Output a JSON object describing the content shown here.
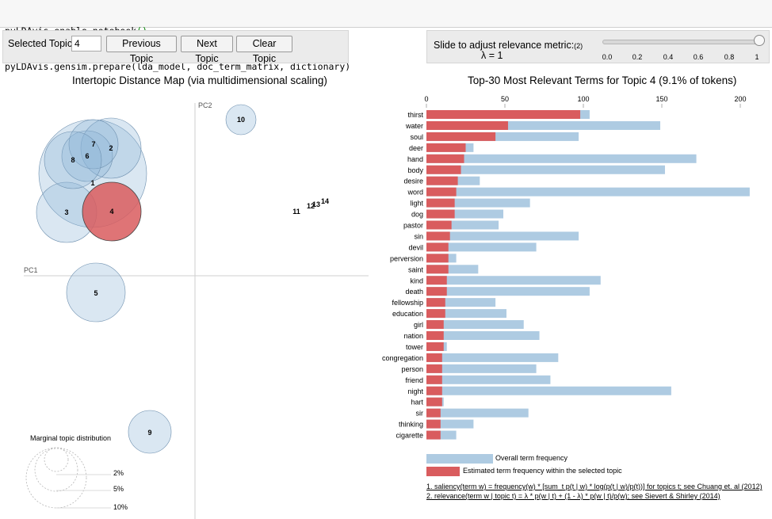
{
  "code_lines": [
    {
      "pre": "pyLDAvis.enable_notebook",
      "paren": "()"
    },
    {
      "pre": "pyLDAvis.gensim.prepare(lda_model, doc_term_matrix, dictionary)",
      "paren": ""
    }
  ],
  "controls": {
    "selected_topic_label": "Selected Topic:",
    "selected_topic_value": "4",
    "prev_label": "Previous Topic",
    "next_label": "Next Topic",
    "clear_label": "Clear Topic",
    "slider_label": "Slide to adjust relevance metric:",
    "slider_note": "(2)",
    "lambda_text": "λ = 1",
    "lambda_value": 1,
    "slider_ticks": [
      "0.0",
      "0.2",
      "0.4",
      "0.6",
      "0.8",
      "1"
    ]
  },
  "intertopic": {
    "title": "Intertopic Distance Map (via multidimensional scaling)",
    "pc1_label": "PC1",
    "pc2_label": "PC2",
    "selected_topic": "4",
    "topics": [
      "1",
      "2",
      "3",
      "4",
      "5",
      "6",
      "7",
      "8",
      "9",
      "10",
      "11",
      "12",
      "13",
      "14"
    ],
    "marginal_title": "Marginal topic distribution",
    "marginal_levels": [
      "2%",
      "5%",
      "10%"
    ]
  },
  "colors": {
    "overall": "#aecbe2",
    "selected": "#d95c5e",
    "topic_bubble": "#8db4d6"
  },
  "chart_data": {
    "type": "bar",
    "title": "Top-30 Most Relevant Terms for Topic 4 (9.1% of tokens)",
    "xlim": [
      0,
      200
    ],
    "xticks": [
      "0",
      "50",
      "100",
      "150",
      "200"
    ],
    "categories": [
      "thirst",
      "water",
      "soul",
      "deer",
      "hand",
      "body",
      "desire",
      "word",
      "light",
      "dog",
      "pastor",
      "sin",
      "devil",
      "perversion",
      "saint",
      "kind",
      "death",
      "fellowship",
      "education",
      "girl",
      "nation",
      "tower",
      "congregation",
      "person",
      "friend",
      "night",
      "hart",
      "sir",
      "thinking",
      "cigarette"
    ],
    "series": [
      {
        "name": "Overall term frequency",
        "values": [
          104,
          149,
          97,
          30,
          172,
          152,
          34,
          206,
          66,
          49,
          46,
          97,
          70,
          19,
          33,
          111,
          104,
          44,
          51,
          62,
          72,
          13,
          84,
          70,
          79,
          156,
          11,
          65,
          30,
          19
        ]
      },
      {
        "name": "Estimated term frequency within the selected topic",
        "values": [
          98,
          52,
          44,
          25,
          24,
          22,
          20,
          19,
          18,
          18,
          16,
          15,
          14,
          14,
          14,
          13,
          13,
          12,
          12,
          11,
          11,
          11,
          10,
          10,
          10,
          10,
          10,
          9,
          9,
          9
        ]
      }
    ],
    "legend_position": "bottom",
    "notes": [
      "1. saliency(term w) = frequency(w) * [sum_t p(t | w) * log(p(t | w)/p(t))] for topics t; see Chuang et. al (2012)",
      "2. relevance(term w | topic t) = λ * p(w | t) + (1 - λ) * p(w | t)/p(w); see Sievert & Shirley (2014)"
    ]
  }
}
